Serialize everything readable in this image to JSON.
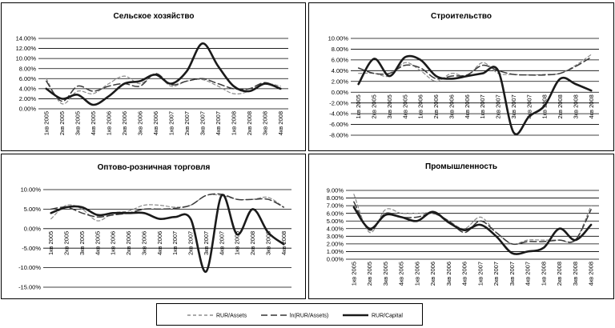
{
  "legend": {
    "items": [
      {
        "name": "RUR/Assets",
        "style": "dashed-light"
      },
      {
        "name": "ln(RUR/Assets)",
        "style": "dashed-dark"
      },
      {
        "name": "RUR/Capital",
        "style": "solid-bold"
      }
    ]
  },
  "chart_data": [
    {
      "type": "line",
      "title": "Сельское хозяйство",
      "categories": [
        "1кв 2005",
        "2кв 2005",
        "3кв 2005",
        "4кв 2005",
        "1кв 2006",
        "2кв 2006",
        "3кв 2006",
        "4кв 2006",
        "1кв 2007",
        "2кв 2007",
        "3кв 2007",
        "4кв 2007",
        "1кв 2008",
        "2кв 2008",
        "3кв 2008",
        "4кв 2008"
      ],
      "yticks": [
        "14.00%",
        "12.00%",
        "10.00%",
        "8.00%",
        "6.00%",
        "4.00%",
        "2.00%",
        "0.00%"
      ],
      "ylim": [
        0,
        14
      ],
      "series": [
        {
          "name": "RUR/Assets",
          "values": [
            6.0,
            1.0,
            3.5,
            3.0,
            5.0,
            6.5,
            5.0,
            6.8,
            4.5,
            5.5,
            5.8,
            4.5,
            3.0,
            3.5,
            5.0,
            4.5
          ]
        },
        {
          "name": "ln(RUR/Assets)",
          "values": [
            5.5,
            1.5,
            4.5,
            3.5,
            4.5,
            5.0,
            4.5,
            7.0,
            4.8,
            5.5,
            6.0,
            5.0,
            4.0,
            4.0,
            5.2,
            4.0
          ]
        },
        {
          "name": "RUR/Capital",
          "values": [
            4.0,
            2.0,
            2.8,
            0.8,
            2.5,
            5.0,
            5.5,
            6.8,
            5.0,
            7.5,
            13.0,
            8.5,
            4.5,
            3.5,
            5.0,
            4.0
          ]
        }
      ]
    },
    {
      "type": "line",
      "title": "Строительство",
      "categories": [
        "1кв 2005",
        "2кв 2005",
        "3кв 2005",
        "4кв 2005",
        "1кв 2006",
        "2кв 2006",
        "3кв 2006",
        "4кв 2006",
        "1кв 2007",
        "2кв 2007",
        "3кв 2007",
        "4кв 2007",
        "1кв 2008",
        "2кв 2008",
        "3кв 2008",
        "4кв 2008"
      ],
      "yticks": [
        "10.00%",
        "8.00%",
        "6.00%",
        "4.00%",
        "2.00%",
        "0.00%",
        "-2.00%",
        "-4.00%",
        "-6.00%",
        "-8.00%"
      ],
      "ylim": [
        -8,
        10
      ],
      "series": [
        {
          "name": "RUR/Assets",
          "values": [
            3.5,
            3.5,
            3.0,
            5.5,
            4.0,
            2.0,
            3.5,
            3.0,
            5.5,
            3.5,
            3.3,
            3.2,
            3.3,
            3.5,
            5.0,
            7.0
          ]
        },
        {
          "name": "ln(RUR/Assets)",
          "values": [
            4.5,
            3.5,
            3.5,
            5.0,
            4.5,
            2.5,
            3.0,
            3.2,
            5.0,
            4.0,
            3.3,
            3.2,
            3.2,
            3.5,
            4.8,
            6.5
          ]
        },
        {
          "name": "RUR/Capital",
          "values": [
            1.5,
            6.2,
            3.0,
            6.5,
            6.0,
            3.0,
            2.5,
            3.0,
            3.5,
            4.0,
            -7.5,
            -4.5,
            -2.5,
            2.5,
            1.5,
            0.3
          ]
        }
      ]
    },
    {
      "type": "line",
      "title": "Оптово-розничная торговля",
      "categories": [
        "1кв 2005",
        "2кв 2005",
        "3кв 2005",
        "4кв 2005",
        "1кв 2006",
        "2кв 2006",
        "3кв 2006",
        "4кв 2006",
        "1кв 2007",
        "2кв 2007",
        "3кв 2007",
        "4кв 2007",
        "1кв 2008",
        "2кв 2008",
        "3кв 2008",
        "4кв 2008"
      ],
      "yticks": [
        "10.00%",
        "5.00%",
        "0.00%",
        "-5.00%",
        "-10.00%",
        "-15.00%"
      ],
      "ylim": [
        -15,
        10
      ],
      "series": [
        {
          "name": "RUR/Assets",
          "values": [
            2.5,
            6.0,
            5.0,
            2.0,
            4.0,
            4.5,
            6.0,
            6.0,
            5.5,
            6.0,
            8.5,
            8.5,
            7.5,
            7.5,
            8.0,
            5.5
          ]
        },
        {
          "name": "ln(RUR/Assets)",
          "values": [
            5.0,
            5.5,
            4.0,
            3.0,
            3.5,
            4.0,
            5.0,
            5.0,
            5.2,
            6.0,
            8.5,
            8.8,
            7.5,
            7.5,
            7.5,
            5.5
          ]
        },
        {
          "name": "RUR/Capital",
          "values": [
            4.0,
            5.5,
            5.5,
            3.5,
            4.0,
            4.0,
            4.0,
            2.5,
            3.0,
            2.5,
            -11.0,
            8.5,
            -1.5,
            5.0,
            -1.0,
            -4.0
          ]
        }
      ]
    },
    {
      "type": "line",
      "title": "Промышленность",
      "categories": [
        "1кв 2005",
        "2кв 2005",
        "3кв 2005",
        "4кв 2005",
        "1кв 2006",
        "2кв 2006",
        "3кв 2006",
        "4кв 2006",
        "1кв 2007",
        "2кв 2007",
        "3кв 2007",
        "4кв 2007",
        "1кв 2008",
        "2кв 2008",
        "3кв 2008",
        "4кв 2008"
      ],
      "yticks": [
        "9.00%",
        "8.00%",
        "7.00%",
        "6.00%",
        "5.00%",
        "4.00%",
        "3.00%",
        "2.00%",
        "1.00%",
        "0.00%"
      ],
      "ylim": [
        0,
        9
      ],
      "series": [
        {
          "name": "RUR/Assets",
          "values": [
            8.5,
            3.5,
            6.5,
            6.0,
            6.0,
            6.0,
            5.0,
            4.0,
            5.5,
            3.5,
            2.0,
            2.5,
            2.5,
            2.5,
            2.5,
            7.0
          ]
        },
        {
          "name": "ln(RUR/Assets)",
          "values": [
            7.5,
            3.8,
            6.0,
            5.5,
            5.5,
            6.0,
            5.0,
            3.5,
            5.0,
            3.5,
            2.0,
            2.3,
            2.3,
            2.5,
            2.5,
            6.5
          ]
        },
        {
          "name": "RUR/Capital",
          "values": [
            6.8,
            4.0,
            5.8,
            5.5,
            5.0,
            6.2,
            4.8,
            3.8,
            4.5,
            3.0,
            0.8,
            1.0,
            1.5,
            4.0,
            2.5,
            4.5
          ]
        }
      ]
    }
  ]
}
